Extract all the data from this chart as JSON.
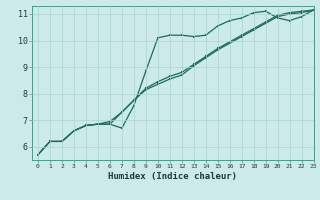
{
  "title": "",
  "xlabel": "Humidex (Indice chaleur)",
  "ylabel": "",
  "bg_color": "#cceae8",
  "line_color": "#1a6b60",
  "grid_color": "#aad4d0",
  "xlim": [
    -0.5,
    23
  ],
  "ylim": [
    5.5,
    11.3
  ],
  "curve1_x": [
    0,
    1,
    2,
    3,
    4,
    5,
    6,
    7,
    8,
    9,
    10,
    11,
    12,
    13,
    14,
    15,
    16,
    17,
    18,
    19,
    20,
    21,
    22,
    23
  ],
  "curve1_y": [
    5.7,
    6.2,
    6.2,
    6.6,
    6.8,
    6.85,
    6.85,
    6.7,
    7.55,
    8.85,
    10.1,
    10.2,
    10.2,
    10.15,
    10.2,
    10.55,
    10.75,
    10.85,
    11.05,
    11.1,
    10.85,
    10.75,
    10.9,
    11.15
  ],
  "curve2_x": [
    0,
    1,
    2,
    3,
    4,
    5,
    6,
    7,
    8,
    9,
    10,
    11,
    12,
    13,
    14,
    15,
    16,
    17,
    18,
    19,
    20,
    21,
    22,
    23
  ],
  "curve2_y": [
    5.7,
    6.2,
    6.2,
    6.6,
    6.8,
    6.85,
    6.85,
    7.3,
    7.75,
    8.15,
    8.35,
    8.55,
    8.7,
    9.05,
    9.35,
    9.65,
    9.9,
    10.15,
    10.4,
    10.65,
    10.9,
    11.0,
    11.05,
    11.15
  ],
  "curve3_x": [
    0,
    1,
    2,
    3,
    4,
    5,
    6,
    7,
    8,
    9,
    10,
    11,
    12,
    13,
    14,
    15,
    16,
    17,
    18,
    19,
    20,
    21,
    22,
    23
  ],
  "curve3_y": [
    5.7,
    6.2,
    6.2,
    6.6,
    6.8,
    6.85,
    6.95,
    7.3,
    7.75,
    8.2,
    8.45,
    8.65,
    8.8,
    9.1,
    9.4,
    9.7,
    9.95,
    10.2,
    10.45,
    10.7,
    10.95,
    11.05,
    11.1,
    11.15
  ],
  "xticks": [
    0,
    1,
    2,
    3,
    4,
    5,
    6,
    7,
    8,
    9,
    10,
    11,
    12,
    13,
    14,
    15,
    16,
    17,
    18,
    19,
    20,
    21,
    22,
    23
  ],
  "yticks": [
    6,
    7,
    8,
    9,
    10,
    11
  ],
  "markersize": 2.0,
  "linewidth": 0.9
}
